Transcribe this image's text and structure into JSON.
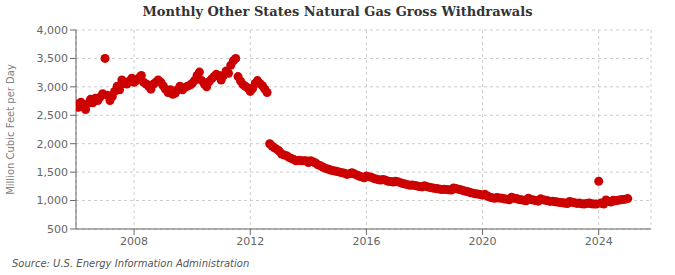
{
  "chart_data": {
    "type": "scatter",
    "title": "Monthly Other States Natural Gas Gross Withdrawals",
    "y_label": "Million Cubic Feet per Day",
    "annotations": [
      "Source: U.S. Energy Information Administration"
    ],
    "color": "#cc0000",
    "grid": true,
    "xlim": [
      2006.0,
      2025.8
    ],
    "xticks": [
      2008,
      2012,
      2016,
      2020,
      2024
    ],
    "ylim": [
      500,
      4000
    ],
    "yticks": [
      500,
      {
        "value": 1000,
        "label": "1,000"
      },
      {
        "value": 1500,
        "label": "1,500"
      },
      {
        "value": 2000,
        "label": "2,000"
      },
      {
        "value": 2500,
        "label": "2,500"
      },
      {
        "value": 3000,
        "label": "3,000"
      },
      {
        "value": 3500,
        "label": "3,500"
      },
      {
        "value": 4000,
        "label": "4,000"
      }
    ],
    "x": [
      2006.0,
      2006.08,
      2006.17,
      2006.25,
      2006.33,
      2006.42,
      2006.5,
      2006.58,
      2006.67,
      2006.75,
      2006.83,
      2006.92,
      2007.0,
      2007.08,
      2007.17,
      2007.25,
      2007.33,
      2007.42,
      2007.5,
      2007.58,
      2007.67,
      2007.75,
      2007.83,
      2007.92,
      2008.0,
      2008.08,
      2008.17,
      2008.25,
      2008.33,
      2008.42,
      2008.5,
      2008.58,
      2008.67,
      2008.75,
      2008.83,
      2008.92,
      2009.0,
      2009.08,
      2009.17,
      2009.25,
      2009.33,
      2009.42,
      2009.5,
      2009.58,
      2009.67,
      2009.75,
      2009.83,
      2009.92,
      2010.0,
      2010.08,
      2010.17,
      2010.25,
      2010.33,
      2010.42,
      2010.5,
      2010.58,
      2010.67,
      2010.75,
      2010.83,
      2010.92,
      2011.0,
      2011.08,
      2011.17,
      2011.25,
      2011.33,
      2011.42,
      2011.5,
      2011.58,
      2011.67,
      2011.75,
      2011.83,
      2011.92,
      2012.0,
      2012.08,
      2012.17,
      2012.25,
      2012.33,
      2012.42,
      2012.5,
      2012.58,
      2012.67,
      2012.75,
      2012.83,
      2012.92,
      2013.0,
      2013.08,
      2013.17,
      2013.25,
      2013.33,
      2013.42,
      2013.5,
      2013.58,
      2013.67,
      2013.75,
      2013.83,
      2013.92,
      2014.0,
      2014.08,
      2014.17,
      2014.25,
      2014.33,
      2014.42,
      2014.5,
      2014.58,
      2014.67,
      2014.75,
      2014.83,
      2014.92,
      2015.0,
      2015.08,
      2015.17,
      2015.25,
      2015.33,
      2015.42,
      2015.5,
      2015.58,
      2015.67,
      2015.75,
      2015.83,
      2015.92,
      2016.0,
      2016.08,
      2016.17,
      2016.25,
      2016.33,
      2016.42,
      2016.5,
      2016.58,
      2016.67,
      2016.75,
      2016.83,
      2016.92,
      2017.0,
      2017.08,
      2017.17,
      2017.25,
      2017.33,
      2017.42,
      2017.5,
      2017.58,
      2017.67,
      2017.75,
      2017.83,
      2017.92,
      2018.0,
      2018.08,
      2018.17,
      2018.25,
      2018.33,
      2018.42,
      2018.5,
      2018.58,
      2018.67,
      2018.75,
      2018.83,
      2018.92,
      2019.0,
      2019.08,
      2019.17,
      2019.25,
      2019.33,
      2019.42,
      2019.5,
      2019.58,
      2019.67,
      2019.75,
      2019.83,
      2019.92,
      2020.0,
      2020.08,
      2020.17,
      2020.25,
      2020.33,
      2020.42,
      2020.5,
      2020.58,
      2020.67,
      2020.75,
      2020.83,
      2020.92,
      2021.0,
      2021.08,
      2021.17,
      2021.25,
      2021.33,
      2021.42,
      2021.5,
      2021.58,
      2021.67,
      2021.75,
      2021.83,
      2021.92,
      2022.0,
      2022.08,
      2022.17,
      2022.25,
      2022.33,
      2022.42,
      2022.5,
      2022.58,
      2022.67,
      2022.75,
      2022.83,
      2022.92,
      2023.0,
      2023.08,
      2023.17,
      2023.25,
      2023.33,
      2023.42,
      2023.5,
      2023.58,
      2023.67,
      2023.75,
      2023.83,
      2023.92,
      2024.0,
      2024.08,
      2024.17,
      2024.25,
      2024.33,
      2024.42,
      2024.5,
      2024.58,
      2024.67,
      2024.75,
      2024.83,
      2024.92,
      2025.0
    ],
    "values": [
      2700,
      2640,
      2730,
      2660,
      2600,
      2710,
      2780,
      2720,
      2800,
      2760,
      2820,
      2880,
      3500,
      2850,
      2760,
      2830,
      2920,
      3010,
      2950,
      3120,
      3060,
      3050,
      3100,
      3150,
      3080,
      3110,
      3160,
      3200,
      3080,
      3050,
      3010,
      2960,
      3050,
      3080,
      3120,
      3080,
      3020,
      2960,
      2900,
      2950,
      2870,
      2890,
      2950,
      3010,
      2950,
      2990,
      3010,
      3030,
      3060,
      3110,
      3200,
      3260,
      3110,
      3050,
      3000,
      3090,
      3140,
      3180,
      3220,
      3200,
      3120,
      3200,
      3280,
      3240,
      3380,
      3460,
      3500,
      3180,
      3100,
      3040,
      3010,
      2980,
      2920,
      2970,
      3060,
      3110,
      3060,
      3020,
      2960,
      2900,
      2000,
      1960,
      1930,
      1900,
      1870,
      1820,
      1800,
      1790,
      1760,
      1740,
      1720,
      1700,
      1710,
      1700,
      1700,
      1700,
      1670,
      1700,
      1680,
      1660,
      1630,
      1610,
      1590,
      1570,
      1555,
      1540,
      1530,
      1520,
      1510,
      1500,
      1490,
      1480,
      1460,
      1470,
      1490,
      1470,
      1450,
      1430,
      1420,
      1400,
      1430,
      1420,
      1410,
      1390,
      1380,
      1365,
      1360,
      1370,
      1355,
      1340,
      1335,
      1325,
      1340,
      1330,
      1315,
      1300,
      1290,
      1280,
      1270,
      1275,
      1265,
      1255,
      1248,
      1240,
      1260,
      1245,
      1235,
      1225,
      1215,
      1210,
      1205,
      1195,
      1200,
      1195,
      1190,
      1185,
      1220,
      1210,
      1200,
      1190,
      1175,
      1165,
      1155,
      1140,
      1130,
      1120,
      1115,
      1105,
      1095,
      1110,
      1080,
      1060,
      1050,
      1040,
      1055,
      1045,
      1040,
      1030,
      1025,
      1015,
      1060,
      1040,
      1035,
      1020,
      1015,
      1005,
      995,
      1040,
      1020,
      1010,
      1000,
      990,
      1030,
      1015,
      1005,
      995,
      985,
      990,
      980,
      975,
      965,
      960,
      955,
      948,
      985,
      970,
      960,
      950,
      955,
      945,
      938,
      948,
      955,
      945,
      940,
      938,
      1340,
      955,
      940,
      1010,
      985,
      975,
      1005,
      995,
      1005,
      1015,
      1020,
      1025,
      1035
    ]
  }
}
